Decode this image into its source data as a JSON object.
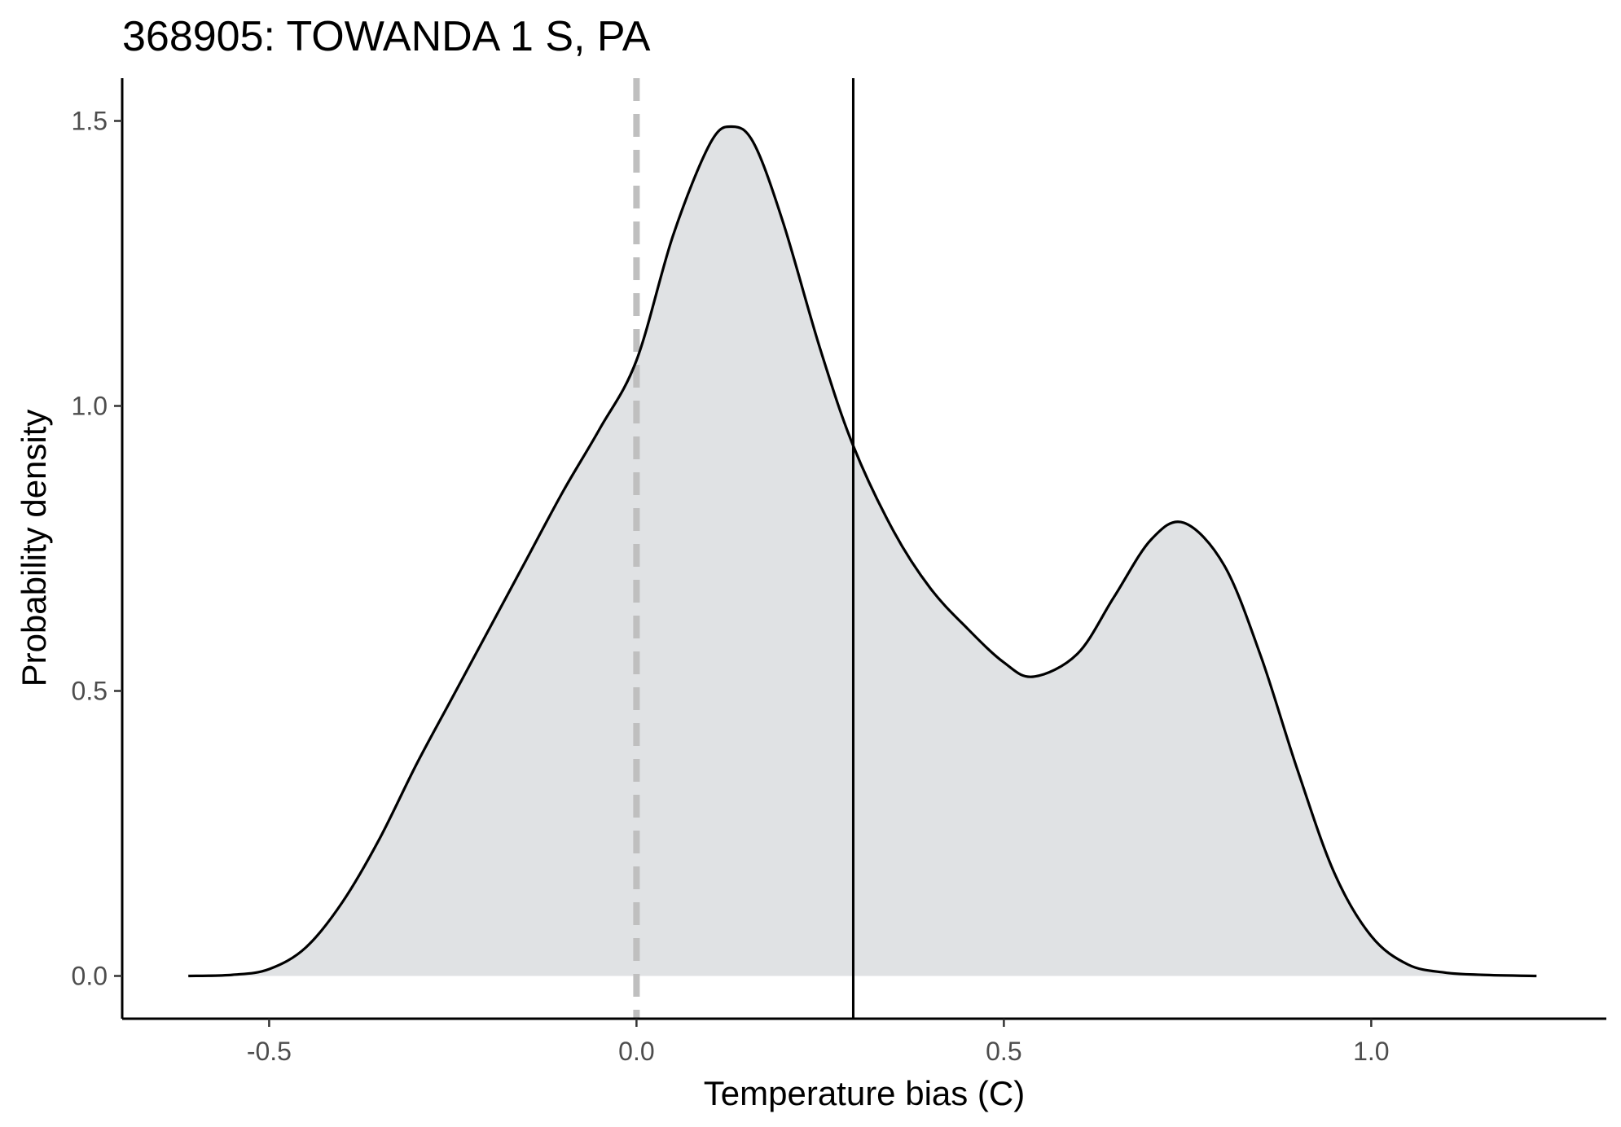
{
  "chart_data": {
    "type": "area",
    "title": "368905: TOWANDA 1 S, PA",
    "xlabel": "Temperature bias (C)",
    "ylabel": "Probability density",
    "xlim": [
      -0.7,
      1.32
    ],
    "ylim": [
      -0.075,
      1.575
    ],
    "x_ticks": [
      -0.5,
      0.0,
      0.5,
      1.0
    ],
    "x_tick_labels": [
      "-0.5",
      "0.0",
      "0.5",
      "1.0"
    ],
    "y_ticks": [
      0.0,
      0.5,
      1.0,
      1.5
    ],
    "y_tick_labels": [
      "0.0",
      "0.5",
      "1.0",
      "1.5"
    ],
    "grid": false,
    "legend": "none",
    "fill_color": "#e0e2e4",
    "line_color": "#000000",
    "reference_lines": [
      {
        "orientation": "vertical",
        "x": 0.0,
        "style": "dashed",
        "color": "#bfbfbf"
      },
      {
        "orientation": "vertical",
        "x": 0.295,
        "style": "solid",
        "color": "#000000"
      }
    ],
    "series": [
      {
        "x": [
          -0.61,
          -0.55,
          -0.5,
          -0.45,
          -0.4,
          -0.35,
          -0.3,
          -0.25,
          -0.2,
          -0.15,
          -0.1,
          -0.05,
          0.0,
          0.05,
          0.1,
          0.13,
          0.16,
          0.2,
          0.25,
          0.295,
          0.35,
          0.4,
          0.45,
          0.5,
          0.54,
          0.6,
          0.65,
          0.7,
          0.745,
          0.8,
          0.85,
          0.9,
          0.95,
          1.0,
          1.05,
          1.1,
          1.15,
          1.225
        ],
        "y": [
          0.0,
          0.002,
          0.012,
          0.05,
          0.13,
          0.24,
          0.37,
          0.49,
          0.61,
          0.73,
          0.85,
          0.96,
          1.08,
          1.3,
          1.46,
          1.49,
          1.46,
          1.32,
          1.1,
          0.93,
          0.78,
          0.68,
          0.61,
          0.55,
          0.525,
          0.565,
          0.665,
          0.765,
          0.795,
          0.72,
          0.56,
          0.36,
          0.18,
          0.07,
          0.02,
          0.006,
          0.002,
          0.0
        ]
      }
    ]
  }
}
